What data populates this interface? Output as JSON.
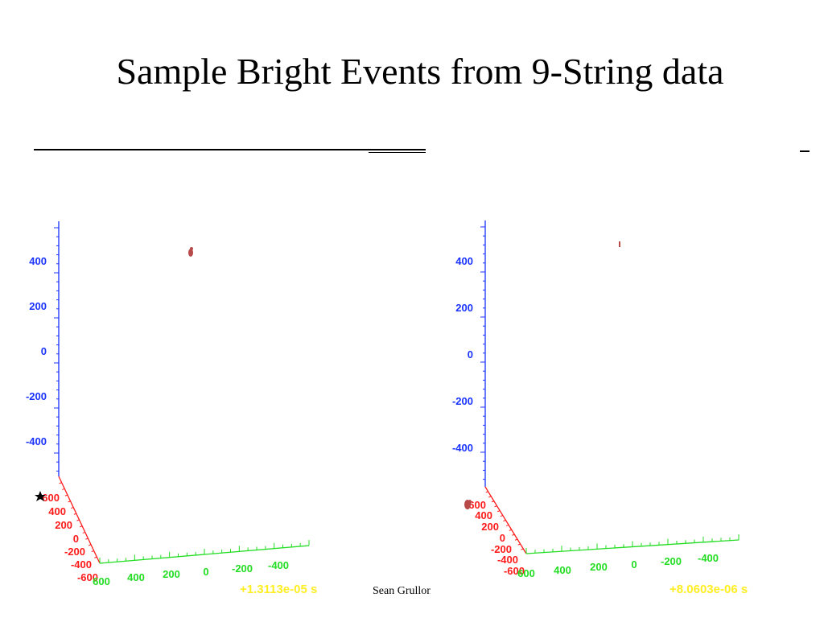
{
  "slide": {
    "title": "Sample Bright Events from 9-String data",
    "footer": "Sean Grullon"
  },
  "colors": {
    "z_axis": "#1a33ff",
    "x_axis": "#ff1a1a",
    "y_axis": "#22dd22",
    "hits": "#b84a4a",
    "time": "#ffee22"
  },
  "plots": [
    {
      "time": "+1.3113e-05 s",
      "z_ticks": [
        "400",
        "200",
        "0",
        "-200",
        "-400"
      ],
      "x_ticks": [
        "600",
        "400",
        "200",
        "0",
        "-200",
        "-400",
        "-600"
      ],
      "y_ticks": [
        "600",
        "400",
        "200",
        "0",
        "-200",
        "-400"
      ]
    },
    {
      "time": "+8.0603e-06 s",
      "z_ticks": [
        "400",
        "200",
        "0",
        "-200",
        "-400"
      ],
      "x_ticks": [
        "600",
        "400",
        "200",
        "0",
        "-200",
        "-400",
        "-600"
      ],
      "y_ticks": [
        "600",
        "400",
        "200",
        "0",
        "-200",
        "-400"
      ]
    }
  ]
}
